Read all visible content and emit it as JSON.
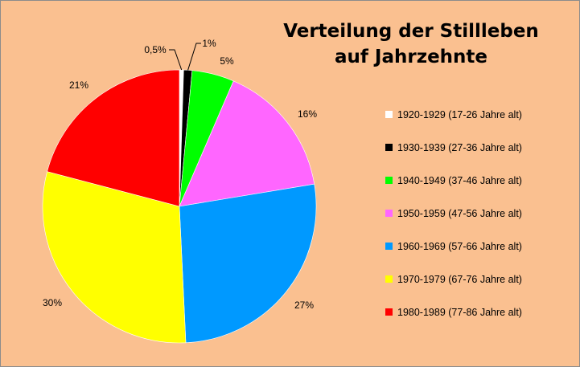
{
  "chart_data": {
    "type": "pie",
    "title": [
      "Verteilung der Stillleben",
      "auf Jahrzehnte"
    ],
    "categories": [
      "1920-1929  (17-26 Jahre alt)",
      "1930-1939  (27-36 Jahre alt)",
      "1940-1949  (37-46 Jahre alt)",
      "1950-1959  (47-56 Jahre alt)",
      "1960-1969  (57-66 Jahre alt)",
      "1970-1979  (67-76 Jahre alt)",
      "1980-1989  (77-86 Jahre alt)"
    ],
    "values": [
      0.5,
      1,
      5,
      16,
      27,
      30,
      21
    ],
    "data_labels": [
      "0,5%",
      "1%",
      "5%",
      "16%",
      "27%",
      "30%",
      "21%"
    ],
    "colors": [
      "#ffffff",
      "#000000",
      "#00ff00",
      "#ff66ff",
      "#0099ff",
      "#ffff00",
      "#ff0000"
    ],
    "legend_position": "right",
    "start_angle": "12 o'clock, clockwise"
  }
}
